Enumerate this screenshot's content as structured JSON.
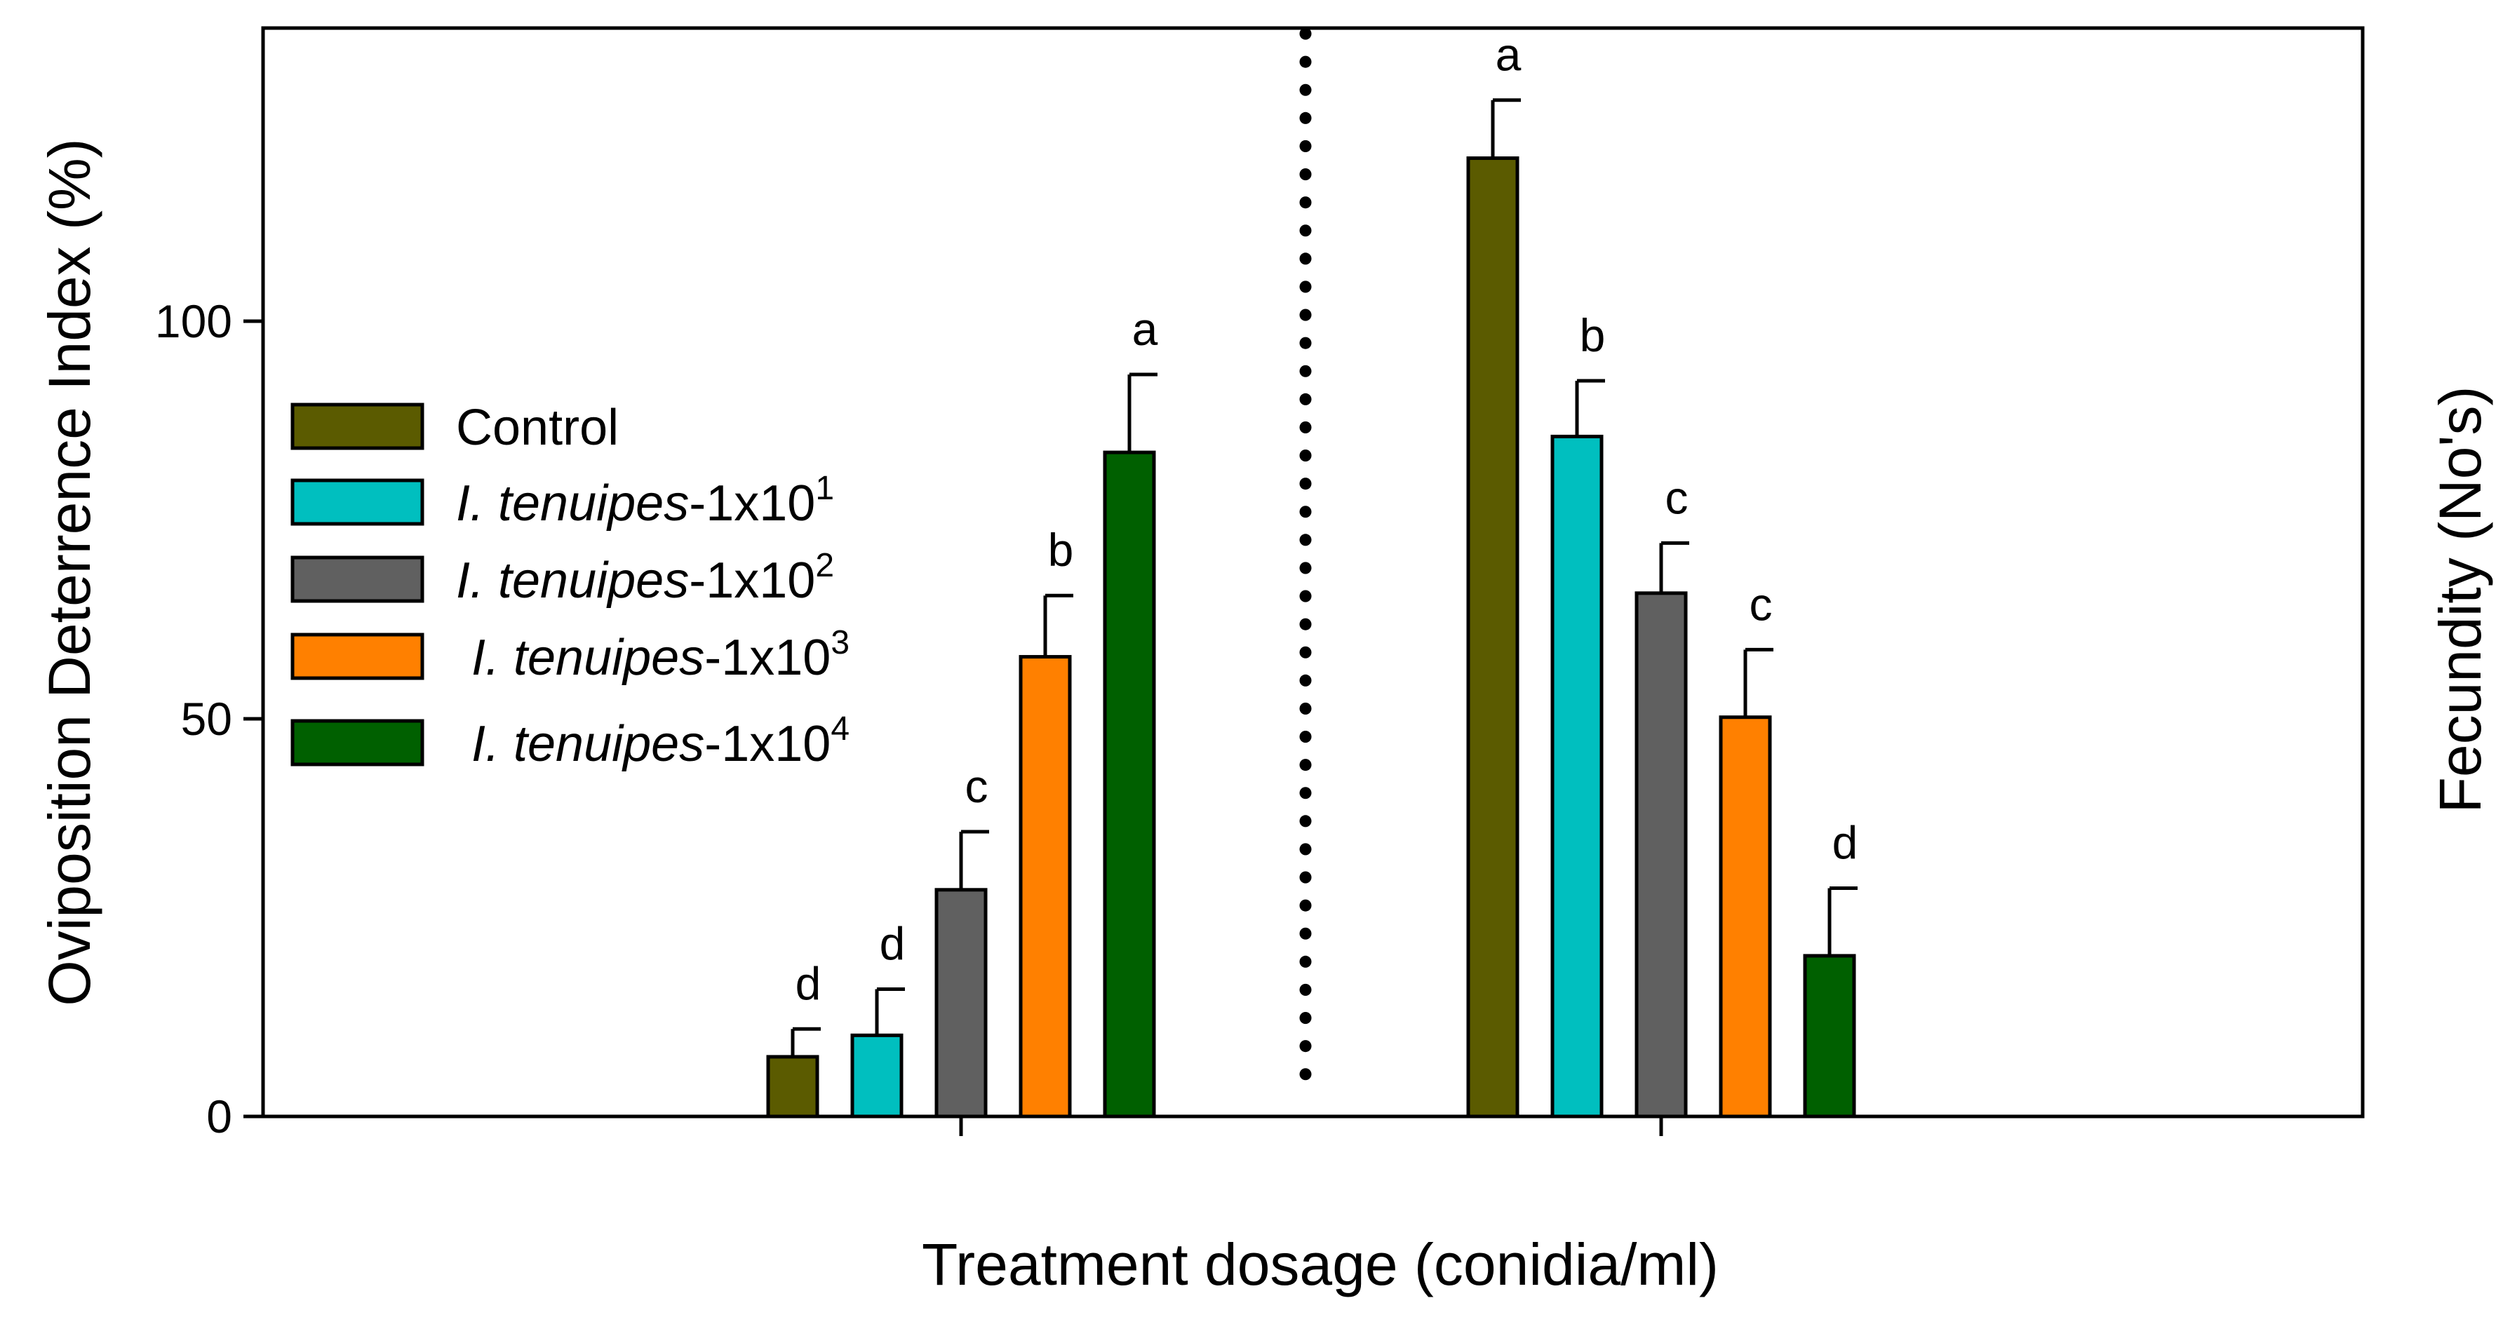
{
  "chart_data": {
    "type": "bar",
    "xlabel": "Treatment dosage (conidia/ml)",
    "ylabel": "Oviposition Deterrence Index (%)",
    "ylabel_right": "Fecundity (No's)",
    "ylim": [
      0,
      137
    ],
    "yticks": [
      0,
      50,
      100
    ],
    "legend_position": "left",
    "colors": [
      "#5b5b00",
      "#00bfbf",
      "#606060",
      "#ff8000",
      "#006000"
    ],
    "legend": [
      {
        "italic": "",
        "plain": "Control",
        "sup": ""
      },
      {
        "italic": "I. tenuipes",
        "plain": "-1x10",
        "sup": "1"
      },
      {
        "italic": "I. tenuipes",
        "plain": "-1x10",
        "sup": "2"
      },
      {
        "italic": "I. tenuipes",
        "plain": "-1x10",
        "sup": "3"
      },
      {
        "italic": "I. tenuipes",
        "plain": "-1x10",
        "sup": "4"
      }
    ],
    "groups": [
      {
        "name": "Oviposition Deterrence Index",
        "values": [
          7.5,
          10.2,
          28.5,
          57.8,
          83.5
        ],
        "errors": [
          3.5,
          5.8,
          7.3,
          7.7,
          9.8
        ],
        "letters": [
          "d",
          "d",
          "c",
          "b",
          "a"
        ]
      },
      {
        "name": "Fecundity",
        "values": [
          120.5,
          85.5,
          65.8,
          50.2,
          20.2
        ],
        "errors": [
          7.3,
          7.0,
          6.3,
          8.5,
          8.5
        ],
        "letters": [
          "a",
          "b",
          "c",
          "c",
          "d"
        ]
      }
    ]
  }
}
